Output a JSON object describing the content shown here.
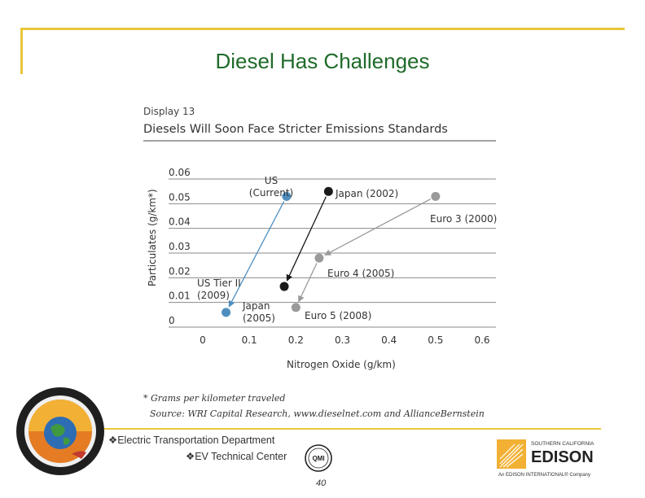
{
  "slide": {
    "title": "Diesel Has Challenges",
    "footer_line1": "❖Electric Transportation Department",
    "footer_line2": "❖EV Technical Center",
    "page_number": "40"
  },
  "logos": {
    "left_seal": "transportation-seal-icon",
    "qmi": "qmi-certification-icon",
    "qmi_text": "QMI",
    "company_line1": "SOUTHERN CALIFORNIA",
    "company_line2": "EDISON",
    "company_tagline": "An EDISON INTERNATIONAL® Company"
  },
  "chart_data": {
    "type": "scatter",
    "display_label": "Display 13",
    "title": "Diesels Will Soon Face Stricter Emissions Standards",
    "xlabel": "Nitrogen Oxide (g/km)",
    "ylabel": "Particulates (g/km*)",
    "xlim": [
      0,
      0.6
    ],
    "ylim": [
      0,
      0.06
    ],
    "x_ticks": [
      "0",
      "0.1",
      "0.2",
      "0.3",
      "0.4",
      "0.5",
      "0.6"
    ],
    "y_ticks": [
      "0",
      "0.01",
      "0.02",
      "0.03",
      "0.04",
      "0.05",
      "0.06"
    ],
    "grid": "horizontal",
    "points": [
      {
        "label": "US (Current)",
        "label_lines": [
          "US",
          "(Current)"
        ],
        "x": 0.18,
        "y": 0.05,
        "color": "#4f8fc0"
      },
      {
        "label": "US Tier II (2009)",
        "label_lines": [
          "US Tier II",
          "(2009)"
        ],
        "x": 0.05,
        "y": 0.003,
        "color": "#4f8fc0"
      },
      {
        "label": "Japan (2002)",
        "label_lines": [
          "Japan (2002)"
        ],
        "x": 0.27,
        "y": 0.052,
        "color": "#1a1a1a"
      },
      {
        "label": "Japan (2005)",
        "label_lines": [
          "Japan",
          "(2005)"
        ],
        "x": 0.175,
        "y": 0.0135,
        "color": "#1a1a1a"
      },
      {
        "label": "Euro 3 (2000)",
        "label_lines": [
          "Euro 3 (2000)"
        ],
        "x": 0.5,
        "y": 0.05,
        "color": "#9a9a9a"
      },
      {
        "label": "Euro 4 (2005)",
        "label_lines": [
          "Euro 4 (2005)"
        ],
        "x": 0.25,
        "y": 0.025,
        "color": "#9a9a9a"
      },
      {
        "label": "Euro 5 (2008)",
        "label_lines": [
          "Euro 5 (2008)"
        ],
        "x": 0.2,
        "y": 0.005,
        "color": "#9a9a9a"
      }
    ],
    "arrows": [
      {
        "from": "US (Current)",
        "to": "US Tier II (2009)",
        "color": "#4f8fc0"
      },
      {
        "from": "Japan (2002)",
        "to": "Japan (2005)",
        "color": "#1a1a1a"
      },
      {
        "from": "Euro 3 (2000)",
        "to": "Euro 4 (2005)",
        "color": "#9a9a9a"
      },
      {
        "from": "Euro 4 (2005)",
        "to": "Euro 5 (2008)",
        "color": "#9a9a9a"
      }
    ],
    "footnote": "* Grams per kilometer traveled",
    "source": "Source: WRI Capital Research, www.dieselnet.com and AllianceBernstein"
  }
}
